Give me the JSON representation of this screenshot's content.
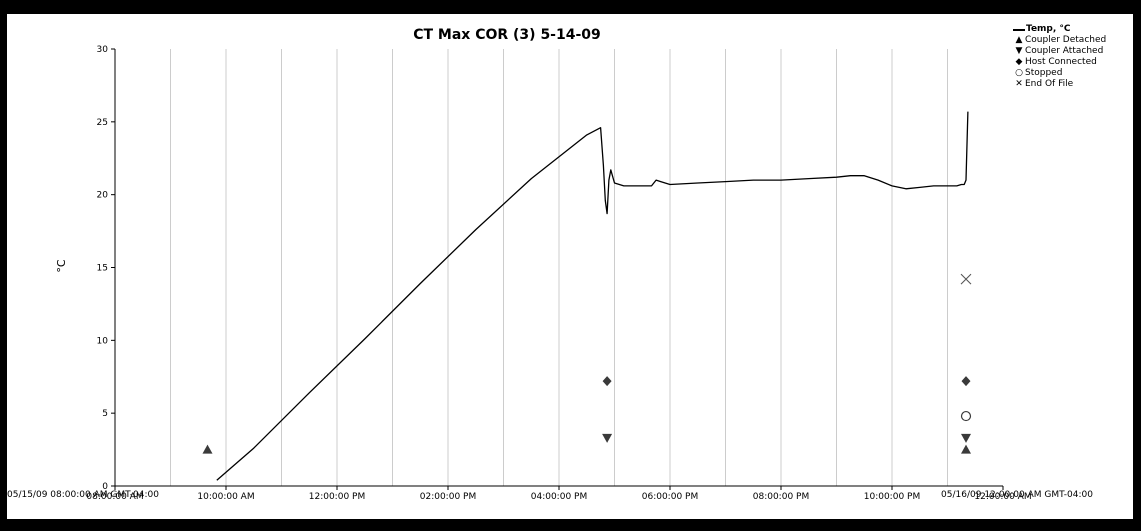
{
  "chart_data": {
    "type": "line",
    "title": "CT Max COR (3) 5-14-09",
    "ylabel": "°C",
    "ylim": [
      0,
      30
    ],
    "yticks": [
      "0",
      "5",
      "10",
      "15",
      "20",
      "25",
      "30"
    ],
    "xlim_hours": [
      8,
      24
    ],
    "xticks": [
      "08:00:00 AM",
      "10:00:00 AM",
      "12:00:00 PM",
      "02:00:00 PM",
      "04:00:00 PM",
      "06:00:00 PM",
      "08:00:00 PM",
      "10:00:00 PM",
      "12:00:00 AM"
    ],
    "xstart_label": "05/15/09 08:00:00 AM GMT-04:00",
    "xend_label": "05/16/09 12:00:00 AM GMT-04:00",
    "grid": "vertical",
    "legend_position": "top-right",
    "series": [
      {
        "name": "Temp, °C",
        "x": [
          "09:50",
          "10:30",
          "11:30",
          "12:30",
          "13:30",
          "14:30",
          "15:30",
          "16:30",
          "16:45",
          "16:48",
          "16:50",
          "16:52",
          "16:54",
          "16:56",
          "17:00",
          "17:10",
          "17:30",
          "17:40",
          "17:45",
          "17:50",
          "18:00",
          "18:30",
          "19:00",
          "19:30",
          "20:00",
          "20:30",
          "21:00",
          "21:15",
          "21:30",
          "21:45",
          "22:00",
          "22:15",
          "22:30",
          "22:45",
          "23:00",
          "23:10",
          "23:15",
          "23:18",
          "23:20",
          "23:22"
        ],
        "y": [
          0.4,
          2.6,
          6.4,
          10.1,
          13.9,
          17.6,
          21.1,
          24.1,
          24.6,
          22.0,
          19.6,
          18.7,
          21.0,
          21.7,
          20.8,
          20.6,
          20.6,
          20.6,
          21.0,
          20.9,
          20.7,
          20.8,
          20.9,
          21.0,
          21.0,
          21.1,
          21.2,
          21.3,
          21.3,
          21.0,
          20.6,
          20.4,
          20.5,
          20.6,
          20.6,
          20.6,
          20.7,
          20.7,
          21.0,
          25.7
        ]
      }
    ],
    "events": [
      {
        "name": "Coupler Detached",
        "symbol": "triangle-up",
        "points": [
          {
            "x": "09:40",
            "y": 2.5
          },
          {
            "x": "23:20",
            "y": 2.5
          }
        ]
      },
      {
        "name": "Coupler Attached",
        "symbol": "triangle-down",
        "points": [
          {
            "x": "16:52",
            "y": 3.3
          },
          {
            "x": "23:20",
            "y": 3.3
          }
        ]
      },
      {
        "name": "Host Connected",
        "symbol": "diamond",
        "points": [
          {
            "x": "16:52",
            "y": 7.2
          },
          {
            "x": "23:20",
            "y": 7.2
          }
        ]
      },
      {
        "name": "Stopped",
        "symbol": "circle",
        "points": [
          {
            "x": "23:20",
            "y": 4.8
          }
        ]
      },
      {
        "name": "End Of File",
        "symbol": "x",
        "points": [
          {
            "x": "23:20",
            "y": 14.2
          }
        ]
      }
    ]
  },
  "legend": {
    "items": [
      {
        "label": "Temp, °C",
        "icon": "line",
        "bold": true
      },
      {
        "label": "Coupler Detached",
        "icon": "triangle-up",
        "glyph": "▲"
      },
      {
        "label": "Coupler Attached",
        "icon": "triangle-down",
        "glyph": "▼"
      },
      {
        "label": "Host Connected",
        "icon": "diamond",
        "glyph": "◆"
      },
      {
        "label": "Stopped",
        "icon": "circle",
        "glyph": "○"
      },
      {
        "label": "End Of File",
        "icon": "x",
        "glyph": "✕"
      }
    ]
  },
  "colors": {
    "line": "#000000",
    "marker": "#3a3a3a",
    "grid": "#cccccc",
    "frame": "#000000",
    "background": "#ffffff"
  }
}
